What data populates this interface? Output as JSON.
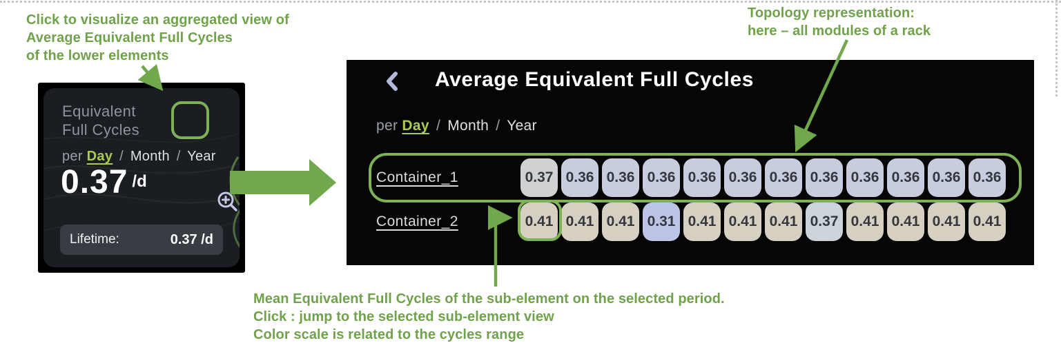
{
  "annotations": {
    "top_left": "Click to visualize an aggregated view of\nAverage Equivalent Full Cycles\nof the lower elements",
    "top_right": "Topology representation:\nhere – all modules of a rack",
    "bottom": "Mean Equivalent Full Cycles of the sub-element on the selected period.\nClick : jump to the selected sub-element view\nColor scale is related to the cycles range"
  },
  "card": {
    "title": "Equivalent\nFull Cycles",
    "period": {
      "prefix": "per",
      "selected": "Day",
      "separator": "/",
      "others": [
        "Month",
        "Year"
      ]
    },
    "value": "0.37",
    "unit": "/d",
    "lifetime_label": "Lifetime:",
    "lifetime_value": "0.37 /d",
    "help_glyph": "?"
  },
  "panel": {
    "title": "Average Equivalent Full Cycles",
    "period": {
      "prefix": "per",
      "selected": "Day",
      "separator": "/",
      "others": [
        "Month",
        "Year"
      ]
    },
    "rows": [
      {
        "label": "Container_1",
        "cells": [
          {
            "value": "0.37",
            "color": "#d0d1d2"
          },
          {
            "value": "0.36",
            "color": "#c7cdde"
          },
          {
            "value": "0.36",
            "color": "#c7cdde"
          },
          {
            "value": "0.36",
            "color": "#c7cdde"
          },
          {
            "value": "0.36",
            "color": "#c7cdde"
          },
          {
            "value": "0.36",
            "color": "#c7cdde"
          },
          {
            "value": "0.36",
            "color": "#c7cdde"
          },
          {
            "value": "0.36",
            "color": "#c7cdde"
          },
          {
            "value": "0.36",
            "color": "#c7cdde"
          },
          {
            "value": "0.36",
            "color": "#c7cdde"
          },
          {
            "value": "0.36",
            "color": "#c7cdde"
          },
          {
            "value": "0.36",
            "color": "#c7cdde"
          }
        ]
      },
      {
        "label": "Container_2",
        "cells": [
          {
            "value": "0.41",
            "color": "#d6d0c2"
          },
          {
            "value": "0.41",
            "color": "#d6d0c2"
          },
          {
            "value": "0.41",
            "color": "#d6d0c2"
          },
          {
            "value": "0.31",
            "color": "#bdc4e7"
          },
          {
            "value": "0.41",
            "color": "#d6d0c2"
          },
          {
            "value": "0.41",
            "color": "#d6d0c2"
          },
          {
            "value": "0.41",
            "color": "#d6d0c2"
          },
          {
            "value": "0.37",
            "color": "#ccd3d9"
          },
          {
            "value": "0.41",
            "color": "#d6d0c2"
          },
          {
            "value": "0.41",
            "color": "#d6d0c2"
          },
          {
            "value": "0.41",
            "color": "#d6d0c2"
          },
          {
            "value": "0.41",
            "color": "#d6d0c2"
          }
        ]
      }
    ]
  },
  "colors": {
    "annotation_green": "#70a84c",
    "outline_green": "#7fb257",
    "panel_bg": "#060607",
    "card_inner_bg": "#1a1d21",
    "accent_day": "#a9cb52",
    "pill_bg": "#383d43"
  }
}
